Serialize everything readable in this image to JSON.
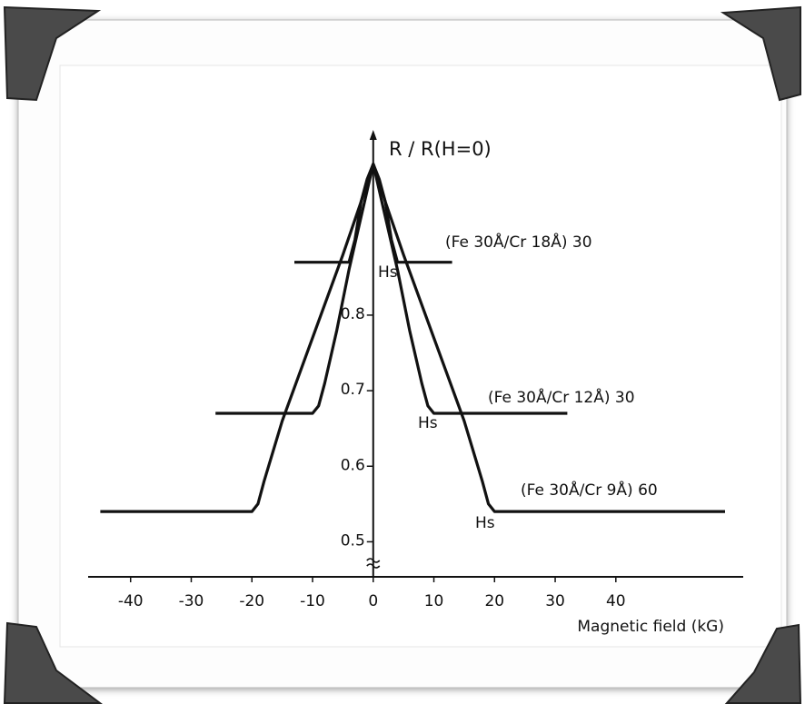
{
  "chart_data": {
    "type": "line",
    "y_label": "R / R(H=0)",
    "x_label": "Magnetic field (kG)",
    "xlim": [
      -47,
      61
    ],
    "ylim": [
      0.45,
      1.05
    ],
    "xticks": [
      -40,
      -30,
      -20,
      -10,
      0,
      10,
      20,
      30,
      40
    ],
    "yticks": [
      0.5,
      0.6,
      0.7,
      0.8
    ],
    "series": [
      {
        "name": "(Fe 30Å/Cr 18Å) 30",
        "color": "#111111",
        "x": [
          -13,
          -4,
          -3,
          -2,
          -1,
          0,
          1,
          2,
          3,
          4,
          13
        ],
        "values": [
          0.87,
          0.87,
          0.9,
          0.95,
          0.98,
          1.0,
          0.98,
          0.95,
          0.9,
          0.87,
          0.87
        ]
      },
      {
        "name": "(Fe 30Å/Cr 12Å) 30",
        "color": "#111111",
        "x": [
          -26,
          -10,
          -9,
          -8,
          -6,
          -4,
          -2,
          0,
          2,
          4,
          6,
          8,
          9,
          10,
          32
        ],
        "values": [
          0.67,
          0.67,
          0.68,
          0.71,
          0.78,
          0.86,
          0.93,
          1.0,
          0.93,
          0.86,
          0.78,
          0.71,
          0.68,
          0.67,
          0.67
        ]
      },
      {
        "name": "(Fe 30Å/Cr 9Å) 60",
        "color": "#111111",
        "x": [
          -45,
          -20,
          -19,
          -18,
          -15,
          -10,
          -5,
          -2,
          0,
          2,
          5,
          10,
          15,
          18,
          19,
          20,
          58
        ],
        "values": [
          0.54,
          0.54,
          0.55,
          0.58,
          0.66,
          0.77,
          0.88,
          0.95,
          1.0,
          0.95,
          0.88,
          0.77,
          0.66,
          0.58,
          0.55,
          0.54,
          0.54
        ]
      }
    ],
    "annotations": [
      "Hs",
      "Hs",
      "Hs"
    ]
  }
}
